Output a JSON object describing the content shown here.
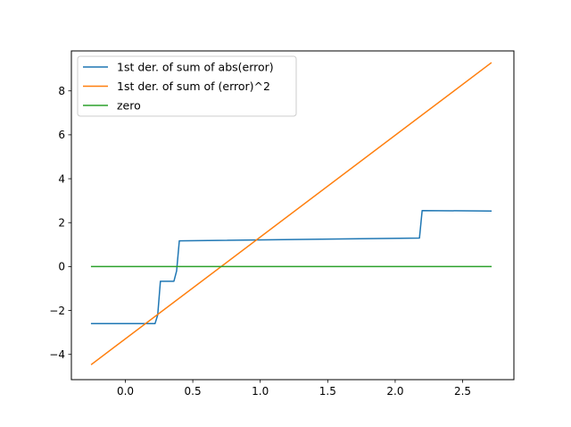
{
  "chart_data": {
    "type": "line",
    "title": "",
    "xlabel": "",
    "ylabel": "",
    "xlim": [
      -0.4,
      2.88
    ],
    "ylim": [
      -5.15,
      9.82
    ],
    "xticks": [
      0.0,
      0.5,
      1.0,
      1.5,
      2.0,
      2.5
    ],
    "xtick_labels": [
      "0.0",
      "0.5",
      "1.0",
      "1.5",
      "2.0",
      "2.5"
    ],
    "yticks": [
      -4,
      -2,
      0,
      2,
      4,
      6,
      8
    ],
    "ytick_labels": [
      "−4",
      "−2",
      "0",
      "2",
      "4",
      "6",
      "8"
    ],
    "grid": false,
    "legend_position": "top-left",
    "series": [
      {
        "name": "1st der. of sum of abs(error)",
        "color": "#1f77b4",
        "x": [
          -0.25,
          0.22,
          0.24,
          0.26,
          0.36,
          0.38,
          0.4,
          2.18,
          2.2,
          2.71
        ],
        "y": [
          -2.6,
          -2.6,
          -2.2,
          -0.67,
          -0.67,
          -0.2,
          1.17,
          1.3,
          2.55,
          2.53
        ]
      },
      {
        "name": "1st der. of sum of (error)^2",
        "color": "#ff7f0e",
        "x": [
          -0.25,
          2.71
        ],
        "y": [
          -4.45,
          9.27
        ]
      },
      {
        "name": "zero",
        "color": "#2ca02c",
        "x": [
          -0.25,
          2.71
        ],
        "y": [
          0,
          0
        ]
      }
    ]
  }
}
